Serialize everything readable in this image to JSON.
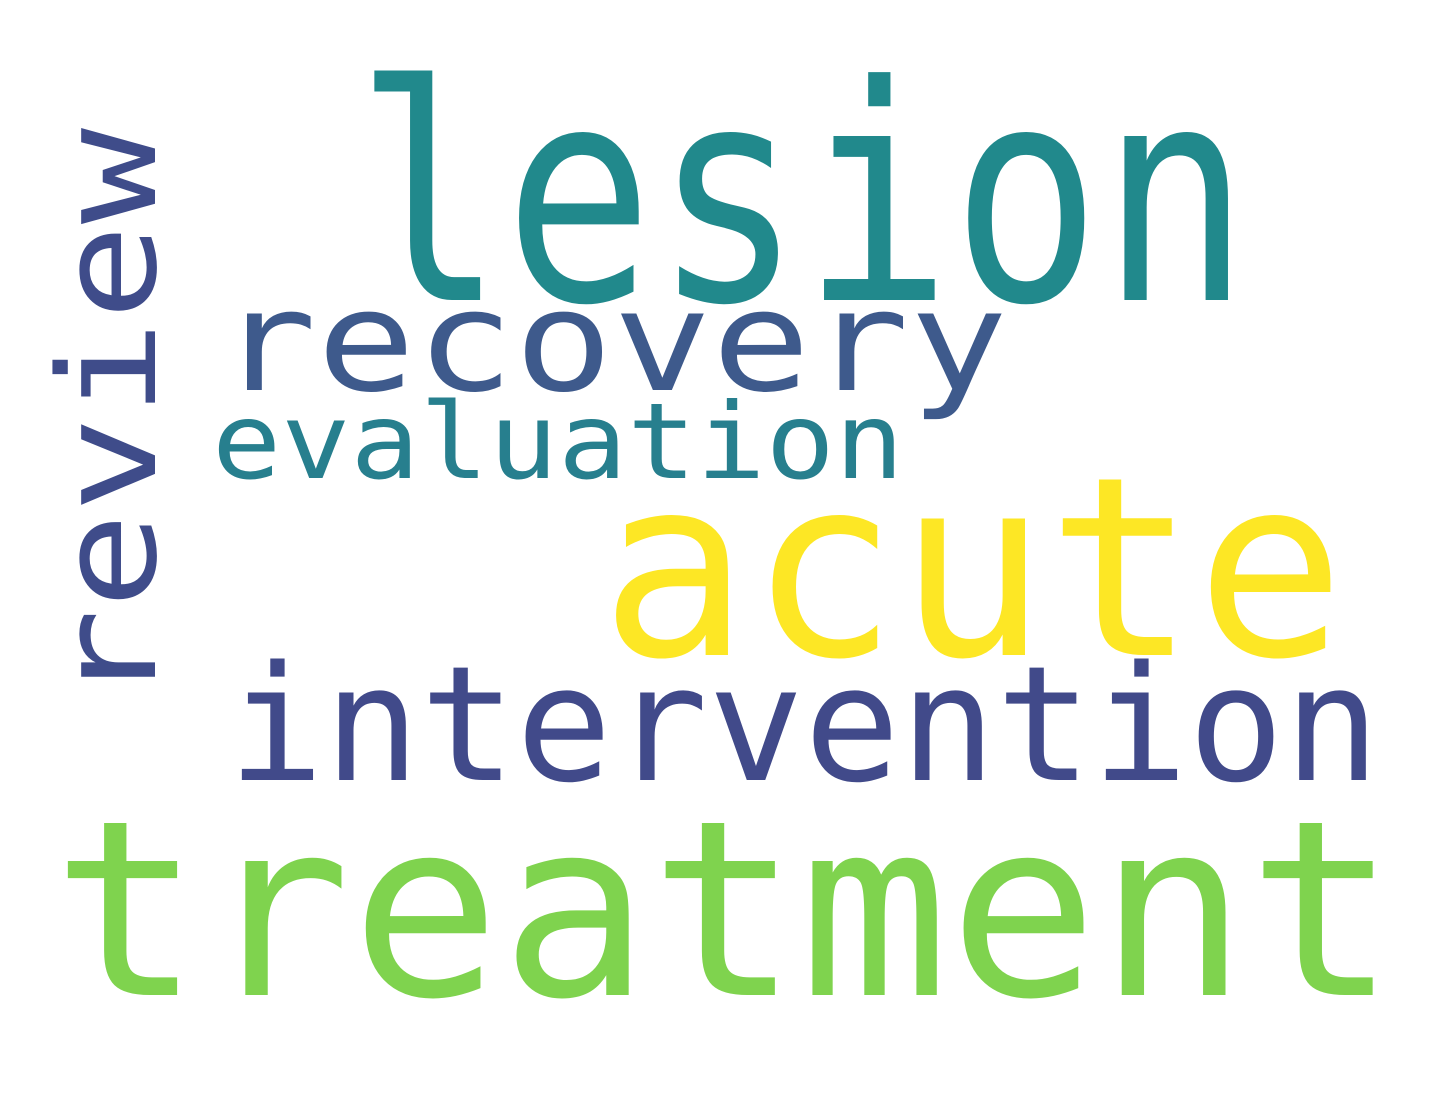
{
  "words": [
    {
      "key": "lesion",
      "text": "lesion",
      "color": "#21898c"
    },
    {
      "key": "review",
      "text": "review",
      "color": "#3f4c8a"
    },
    {
      "key": "recovery",
      "text": "recovery",
      "color": "#3e5a8c"
    },
    {
      "key": "evaluation",
      "text": "evaluation",
      "color": "#277f8e"
    },
    {
      "key": "acute",
      "text": "acute",
      "color": "#fde725"
    },
    {
      "key": "intervention",
      "text": "intervention",
      "color": "#414a8a"
    },
    {
      "key": "treatment",
      "text": "treatment",
      "color": "#7fd34e"
    }
  ]
}
